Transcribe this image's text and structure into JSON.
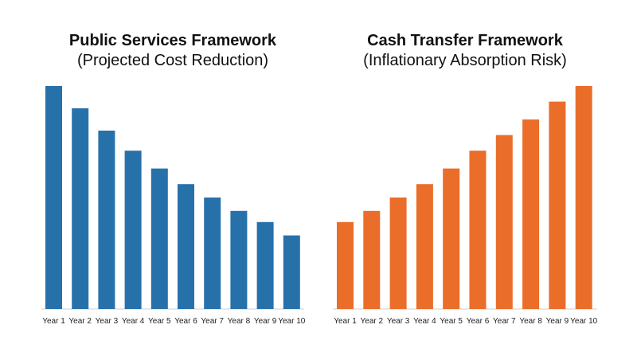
{
  "chart_data": [
    {
      "type": "bar",
      "title": "Public Services Framework",
      "subtitle": "(Projected Cost Reduction)",
      "xlabel": "",
      "ylabel": "",
      "categories": [
        "Year 1",
        "Year 2",
        "Year 3",
        "Year 4",
        "Year 5",
        "Year 6",
        "Year 7",
        "Year 8",
        "Year 9",
        "Year 10"
      ],
      "values": [
        100,
        90,
        80,
        71,
        63,
        56,
        50,
        44,
        39,
        33
      ],
      "ylim": [
        0,
        100
      ],
      "color": "#2771ab",
      "grid": false
    },
    {
      "type": "bar",
      "title": "Cash Transfer Framework",
      "subtitle": "(Inflationary Absorption Risk)",
      "xlabel": "",
      "ylabel": "",
      "categories": [
        "Year 1",
        "Year 2",
        "Year 3",
        "Year 4",
        "Year 5",
        "Year 6",
        "Year 7",
        "Year 8",
        "Year 9",
        "Year 10"
      ],
      "values": [
        39,
        44,
        50,
        56,
        63,
        71,
        78,
        85,
        93,
        100
      ],
      "ylim": [
        0,
        100
      ],
      "color": "#ea6d2a",
      "grid": false
    }
  ]
}
